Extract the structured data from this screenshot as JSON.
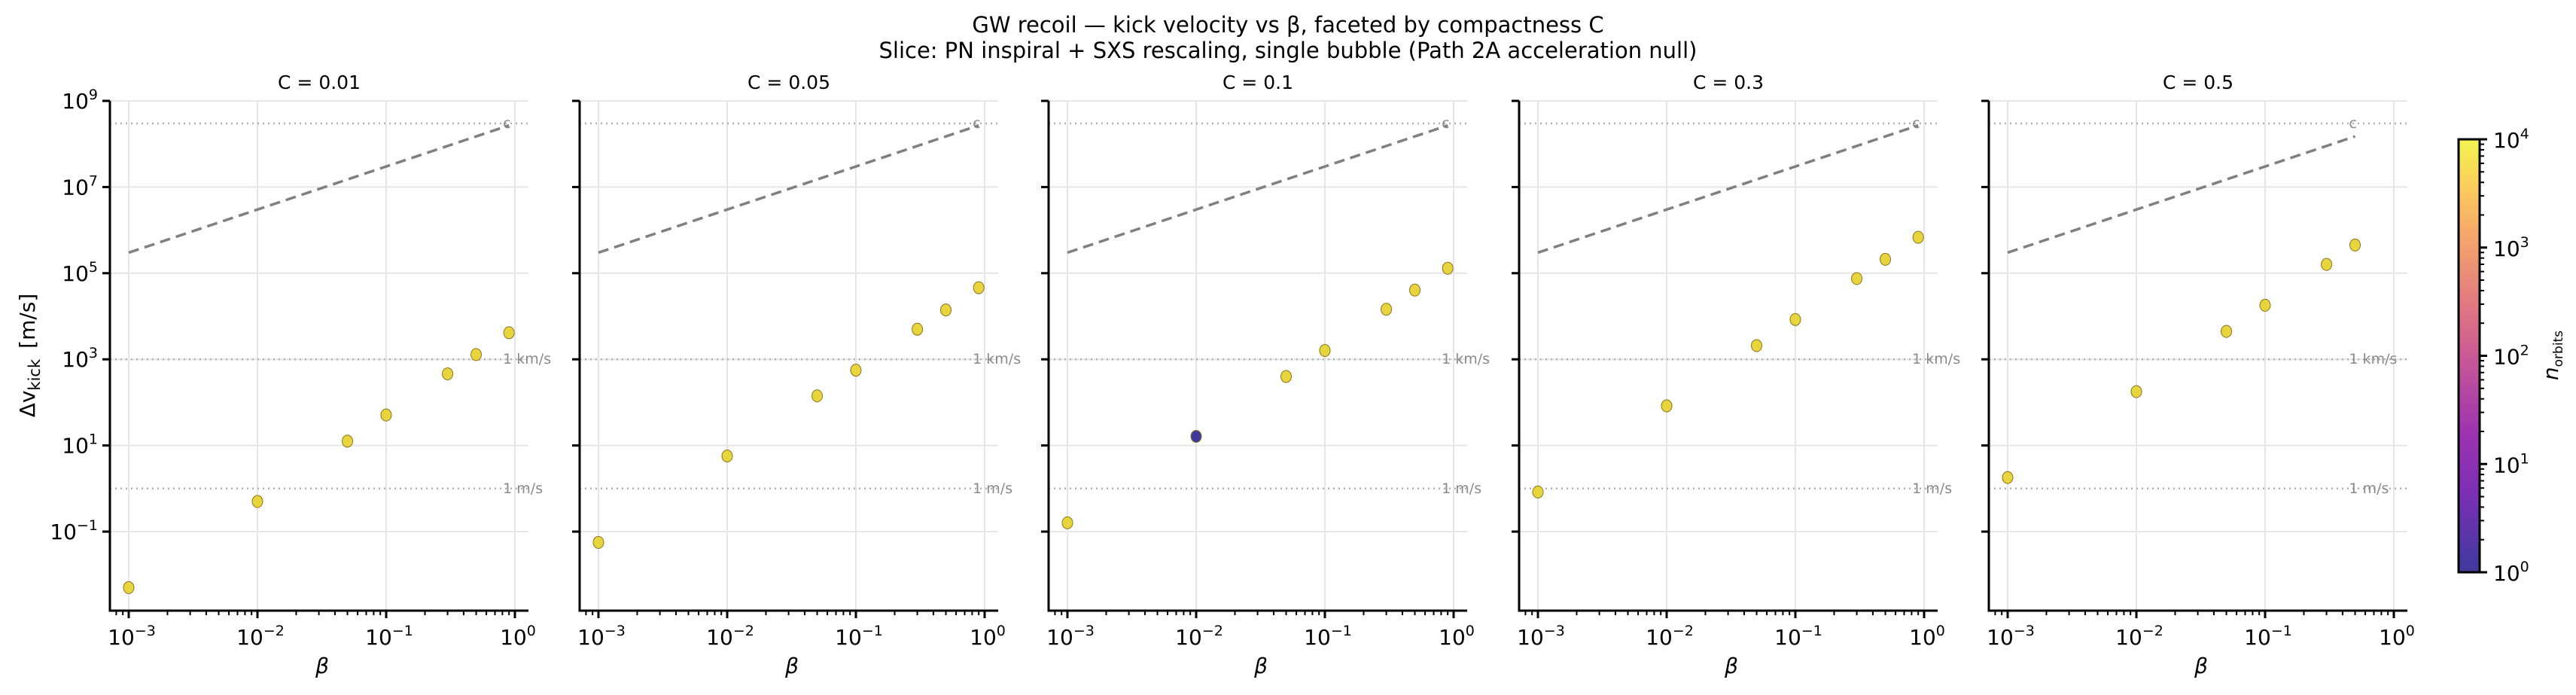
{
  "chart_data": {
    "type": "scatter",
    "title": "GW recoil — kick velocity vs β, faceted by compactness C",
    "subtitle": "Slice: PN inspiral + SXS rescaling, single bubble (Path 2A acceleration null)",
    "xlabel": "β",
    "ylabel_main": "Δv",
    "ylabel_sub": "kick",
    "ylabel_unit": "[m/s]",
    "xscale": "log",
    "yscale": "log",
    "xlim": [
      0.000714,
      1.29
    ],
    "ylim": [
      0.0015,
      1000000000.0
    ],
    "x_ticks": [
      {
        "value": 0.001,
        "base": "10",
        "exp": "−3"
      },
      {
        "value": 0.01,
        "base": "10",
        "exp": "−2"
      },
      {
        "value": 0.1,
        "base": "10",
        "exp": "−1"
      },
      {
        "value": 1,
        "base": "10",
        "exp": "0"
      }
    ],
    "y_ticks": [
      {
        "value": 0.1,
        "base": "10",
        "exp": "−1"
      },
      {
        "value": 10,
        "base": "10",
        "exp": "1"
      },
      {
        "value": 1000,
        "base": "10",
        "exp": "3"
      },
      {
        "value": 100000,
        "base": "10",
        "exp": "5"
      },
      {
        "value": 10000000,
        "base": "10",
        "exp": "7"
      },
      {
        "value": 1000000000,
        "base": "10",
        "exp": "9"
      }
    ],
    "grid": true,
    "reference_lines": [
      {
        "label": "c",
        "value": 299792458
      },
      {
        "label": "1 km/s",
        "value": 1000
      },
      {
        "label": "1 m/s",
        "value": 1
      }
    ],
    "upper_bound_line": {
      "label": "c·β",
      "style": "dashed",
      "coefficient": 299792458
    },
    "colorbar": {
      "label_main": "n",
      "label_sub": "orbits",
      "scale": "log",
      "range": [
        1,
        10000
      ],
      "colormap": "plasma",
      "ticks": [
        {
          "value": 1,
          "base": "10",
          "exp": "0"
        },
        {
          "value": 10,
          "base": "10",
          "exp": "1"
        },
        {
          "value": 100,
          "base": "10",
          "exp": "2"
        },
        {
          "value": 1000,
          "base": "10",
          "exp": "3"
        },
        {
          "value": 10000,
          "base": "10",
          "exp": "4"
        }
      ]
    },
    "panels": [
      {
        "title": "C = 0.01",
        "compactness": 0.01,
        "points": [
          {
            "beta": 0.001,
            "dv": 0.005,
            "n_orbits": 10000
          },
          {
            "beta": 0.01,
            "dv": 0.5,
            "n_orbits": 10000
          },
          {
            "beta": 0.05,
            "dv": 12.6,
            "n_orbits": 10000
          },
          {
            "beta": 0.1,
            "dv": 51,
            "n_orbits": 10000
          },
          {
            "beta": 0.3,
            "dv": 460,
            "n_orbits": 10000
          },
          {
            "beta": 0.5,
            "dv": 1290,
            "n_orbits": 10000
          },
          {
            "beta": 0.9,
            "dv": 4150,
            "n_orbits": 10000
          }
        ]
      },
      {
        "title": "C = 0.05",
        "compactness": 0.05,
        "points": [
          {
            "beta": 0.001,
            "dv": 0.056,
            "n_orbits": 10000
          },
          {
            "beta": 0.01,
            "dv": 5.7,
            "n_orbits": 10000
          },
          {
            "beta": 0.05,
            "dv": 142,
            "n_orbits": 10000
          },
          {
            "beta": 0.1,
            "dv": 560,
            "n_orbits": 10000
          },
          {
            "beta": 0.3,
            "dv": 5000,
            "n_orbits": 10000
          },
          {
            "beta": 0.5,
            "dv": 14000,
            "n_orbits": 10000
          },
          {
            "beta": 0.9,
            "dv": 46000,
            "n_orbits": 10000
          }
        ]
      },
      {
        "title": "C = 0.1",
        "compactness": 0.1,
        "points": [
          {
            "beta": 0.001,
            "dv": 0.16,
            "n_orbits": 10000
          },
          {
            "beta": 0.01,
            "dv": 16.3,
            "n_orbits": 1
          },
          {
            "beta": 0.05,
            "dv": 400,
            "n_orbits": 10000
          },
          {
            "beta": 0.1,
            "dv": 1600,
            "n_orbits": 10000
          },
          {
            "beta": 0.3,
            "dv": 14500,
            "n_orbits": 10000
          },
          {
            "beta": 0.5,
            "dv": 40500,
            "n_orbits": 10000
          },
          {
            "beta": 0.9,
            "dv": 130000,
            "n_orbits": 10000
          }
        ]
      },
      {
        "title": "C = 0.3",
        "compactness": 0.3,
        "points": [
          {
            "beta": 0.001,
            "dv": 0.83,
            "n_orbits": 10000
          },
          {
            "beta": 0.01,
            "dv": 83,
            "n_orbits": 10000
          },
          {
            "beta": 0.05,
            "dv": 2080,
            "n_orbits": 10000
          },
          {
            "beta": 0.1,
            "dv": 8400,
            "n_orbits": 10000
          },
          {
            "beta": 0.3,
            "dv": 75000,
            "n_orbits": 10000
          },
          {
            "beta": 0.5,
            "dv": 210000,
            "n_orbits": 10000
          },
          {
            "beta": 0.9,
            "dv": 680000,
            "n_orbits": 10000
          }
        ]
      },
      {
        "title": "C = 0.5",
        "compactness": 0.5,
        "points": [
          {
            "beta": 0.001,
            "dv": 1.8,
            "n_orbits": 10000
          },
          {
            "beta": 0.01,
            "dv": 178,
            "n_orbits": 10000
          },
          {
            "beta": 0.05,
            "dv": 4450,
            "n_orbits": 10000
          },
          {
            "beta": 0.1,
            "dv": 18000,
            "n_orbits": 10000
          },
          {
            "beta": 0.3,
            "dv": 160000,
            "n_orbits": 10000
          },
          {
            "beta": 0.5,
            "dv": 450000,
            "n_orbits": 10000
          }
        ]
      }
    ]
  }
}
